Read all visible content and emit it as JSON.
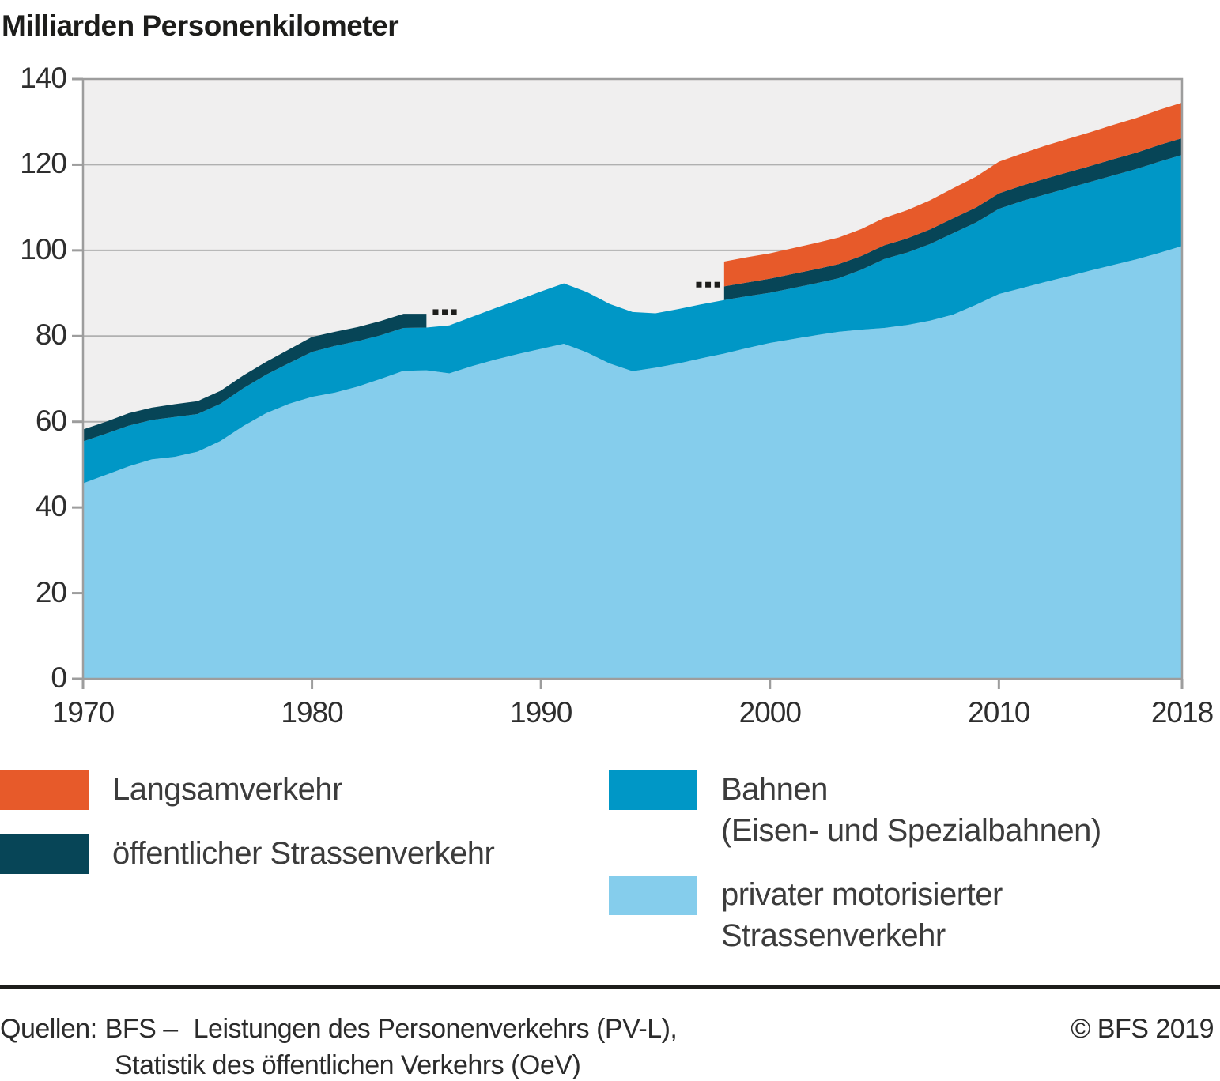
{
  "title": "Milliarden Personenkilometer",
  "legend": {
    "items": [
      {
        "label": "Langsamverkehr",
        "color": "#e75a2a"
      },
      {
        "label": "öffentlicher Strassenverkehr",
        "color": "#074557"
      },
      {
        "label": "Bahnen\n(Eisen- und Spezialbahnen)",
        "color": "#0097c6"
      },
      {
        "label": "privater motorisierter\nStrassenverkehr",
        "color": "#85cdec"
      }
    ]
  },
  "footer": {
    "quellen_label": "Quellen:",
    "org": "BFS –",
    "source_line1": "Leistungen des Personenverkehrs (PV-L),",
    "source_line2": "Statistik des öffentlichen Verkehrs (OeV)",
    "copyright": "© BFS 2019"
  },
  "chart_data": {
    "type": "area",
    "stacked": true,
    "title": "Milliarden Personenkilometer",
    "ylabel": "Milliarden Personenkilometer",
    "xlabel": "",
    "ylim": [
      0,
      140
    ],
    "yticks": [
      0,
      20,
      40,
      60,
      80,
      100,
      120,
      140
    ],
    "xticks": [
      1970,
      1980,
      1990,
      2000,
      2010,
      2018
    ],
    "grid": true,
    "legend_position": "bottom",
    "plot_bg": "#f0efef",
    "grid_color": "#b0b0b0",
    "axis_color": "#9d9d9d",
    "marker_color": "#1d1d1b",
    "x": [
      1970,
      1971,
      1972,
      1973,
      1974,
      1975,
      1976,
      1977,
      1978,
      1979,
      1980,
      1981,
      1982,
      1983,
      1984,
      1985,
      1986,
      1987,
      1988,
      1989,
      1990,
      1991,
      1992,
      1993,
      1994,
      1995,
      1996,
      1997,
      1998,
      1999,
      2000,
      2001,
      2002,
      2003,
      2004,
      2005,
      2006,
      2007,
      2008,
      2009,
      2010,
      2011,
      2012,
      2013,
      2014,
      2015,
      2016,
      2017,
      2018
    ],
    "series": [
      {
        "name": "privater motorisierter Strassenverkehr",
        "color": "#85cdec",
        "values": [
          45.6,
          47.6,
          49.6,
          51.2,
          51.8,
          53.0,
          55.5,
          59.0,
          62.0,
          64.2,
          65.8,
          66.8,
          68.2,
          70.0,
          71.9,
          72.0,
          71.3,
          73.0,
          74.5,
          75.8,
          77.0,
          78.2,
          76.2,
          73.6,
          71.8,
          72.6,
          73.6,
          74.8,
          75.9,
          77.2,
          78.4,
          79.3,
          80.2,
          81.0,
          81.5,
          81.9,
          82.6,
          83.6,
          85.0,
          87.3,
          89.8,
          91.2,
          92.6,
          93.9,
          95.3,
          96.6,
          97.9,
          99.4,
          101.0
        ]
      },
      {
        "name": "Bahnen (Eisen- und Spezialbahnen)",
        "color": "#0097c6",
        "values": [
          9.8,
          9.6,
          9.5,
          9.2,
          9.3,
          8.8,
          8.7,
          8.8,
          9.0,
          9.5,
          10.5,
          10.9,
          10.6,
          10.2,
          10.0,
          10.0,
          11.2,
          11.5,
          12.0,
          12.6,
          13.4,
          14.1,
          14.1,
          13.9,
          13.8,
          12.7,
          12.7,
          12.6,
          12.5,
          12.1,
          11.7,
          11.9,
          12.1,
          12.5,
          14.0,
          16.1,
          16.9,
          17.9,
          19.0,
          19.2,
          19.9,
          20.3,
          20.4,
          20.6,
          20.7,
          20.9,
          21.1,
          21.3,
          21.3
        ]
      },
      {
        "name": "öffentlicher Strassenverkehr",
        "color": "#074557",
        "values": [
          2.8,
          2.8,
          2.9,
          2.9,
          3.0,
          3.0,
          3.0,
          3.0,
          3.0,
          3.2,
          3.5,
          3.3,
          3.3,
          3.3,
          3.3,
          3.2,
          null,
          null,
          null,
          null,
          null,
          null,
          null,
          null,
          null,
          null,
          null,
          null,
          3.2,
          3.2,
          3.3,
          3.3,
          3.3,
          3.3,
          3.2,
          3.2,
          3.3,
          3.4,
          3.5,
          3.5,
          3.6,
          3.6,
          3.7,
          3.7,
          3.7,
          3.8,
          3.8,
          3.9,
          3.9
        ]
      },
      {
        "name": "Langsamverkehr",
        "color": "#e75a2a",
        "values": [
          null,
          null,
          null,
          null,
          null,
          null,
          null,
          null,
          null,
          null,
          null,
          null,
          null,
          null,
          null,
          null,
          null,
          null,
          null,
          null,
          null,
          null,
          null,
          null,
          null,
          null,
          null,
          null,
          5.8,
          5.9,
          5.9,
          6.0,
          6.1,
          6.2,
          6.3,
          6.4,
          6.6,
          6.8,
          7.0,
          7.2,
          7.4,
          7.5,
          7.7,
          7.8,
          7.9,
          8.0,
          8.1,
          8.2,
          8.3
        ]
      }
    ],
    "break_markers": [
      {
        "years": [
          1985.4,
          1985.8,
          1986.2
        ],
        "value": 85.6
      },
      {
        "years": [
          1996.9,
          1997.3,
          1997.7
        ],
        "value": 92.0
      }
    ]
  }
}
